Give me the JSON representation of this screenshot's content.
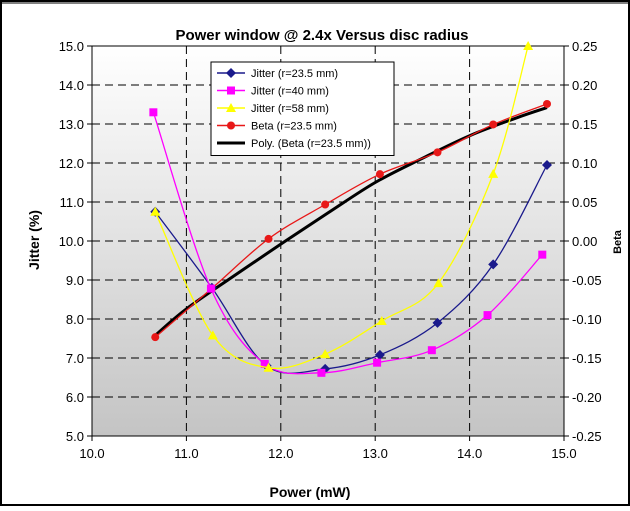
{
  "chart_data": {
    "type": "line",
    "title": "Power window @ 2.4x Versus disc radius",
    "xlabel": "Power (mW)",
    "ylabel": "Jitter (%)",
    "y2label": "Beta",
    "xlim": [
      10.0,
      15.0
    ],
    "ylim": [
      5.0,
      15.0
    ],
    "y2lim": [
      -0.25,
      0.25
    ],
    "x_ticks": [
      "10.0",
      "11.0",
      "12.0",
      "13.0",
      "14.0",
      "15.0"
    ],
    "y_ticks": [
      "5.0",
      "6.0",
      "7.0",
      "8.0",
      "9.0",
      "10.0",
      "11.0",
      "12.0",
      "13.0",
      "14.0",
      "15.0"
    ],
    "y2_ticks": [
      "-0.25",
      "-0.20",
      "-0.15",
      "-0.10",
      "-0.05",
      "0.00",
      "0.05",
      "0.10",
      "0.15",
      "0.20",
      "0.25"
    ],
    "grid": "dashed",
    "legend_position": "top-center",
    "series": [
      {
        "name": "Jitter (r=23.5 mm)",
        "axis": "left",
        "color": "#1a1a8c",
        "marker": "diamond",
        "x": [
          10.67,
          11.27,
          11.85,
          12.47,
          13.05,
          13.66,
          14.25,
          14.82
        ],
        "y": [
          10.75,
          8.8,
          6.8,
          6.72,
          7.08,
          7.9,
          9.4,
          11.95
        ]
      },
      {
        "name": "Jitter (r=40 mm)",
        "axis": "left",
        "color": "#ff00ff",
        "marker": "square",
        "x": [
          10.65,
          11.26,
          11.83,
          12.43,
          13.02,
          13.6,
          14.19,
          14.77
        ],
        "y": [
          13.3,
          8.78,
          6.85,
          6.62,
          6.88,
          7.2,
          8.1,
          9.65
        ]
      },
      {
        "name": "Jitter (r=58 mm)",
        "axis": "left",
        "color": "#ffff00",
        "marker": "triangle",
        "x": [
          10.67,
          11.28,
          11.87,
          12.47,
          13.07,
          13.67,
          14.25,
          14.62
        ],
        "y": [
          10.75,
          7.58,
          6.75,
          7.1,
          7.95,
          8.92,
          11.72,
          15.0
        ]
      },
      {
        "name": "Beta (r=23.5 mm)",
        "axis": "right",
        "color": "#e81818",
        "marker": "circle",
        "x": [
          10.67,
          11.27,
          11.87,
          12.47,
          13.05,
          13.66,
          14.25,
          14.82
        ],
        "y": [
          -0.1233,
          -0.0607,
          0.0027,
          0.0468,
          0.0857,
          0.1137,
          0.1494,
          0.1757
        ]
      },
      {
        "name": "Poly. (Beta (r=23.5 mm))",
        "axis": "right",
        "color": "#000000",
        "marker": "none",
        "trendline": true,
        "x": [
          10.67,
          11.0,
          11.5,
          12.0,
          12.5,
          13.0,
          13.5,
          14.0,
          14.5,
          14.82
        ],
        "y": [
          -0.121,
          -0.087,
          -0.045,
          -0.004,
          0.036,
          0.075,
          0.106,
          0.135,
          0.158,
          0.171
        ]
      }
    ]
  }
}
